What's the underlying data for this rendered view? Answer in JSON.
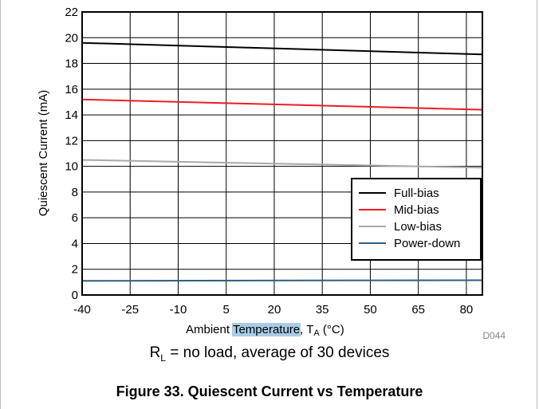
{
  "chart_data": {
    "type": "line",
    "xlabel_pre": "Ambient ",
    "xlabel_highlight": "Temperature",
    "xlabel_post": ", T",
    "xlabel_sub": "A",
    "xlabel_unit": " (°C)",
    "ylabel": "Quiescent Current (mA)",
    "xlim": [
      -40,
      85
    ],
    "ylim": [
      0,
      22
    ],
    "xticks": [
      -40,
      -25,
      -10,
      5,
      20,
      35,
      50,
      65,
      80
    ],
    "yticks": [
      0,
      2,
      4,
      6,
      8,
      10,
      12,
      14,
      16,
      18,
      20,
      22
    ],
    "grid": true,
    "legend_position": "lower-right",
    "series": [
      {
        "name": "Full-bias",
        "color": "#000000",
        "x": [
          -40,
          85
        ],
        "y": [
          19.6,
          18.7
        ]
      },
      {
        "name": "Mid-bias",
        "color": "#ee1c25",
        "x": [
          -40,
          85
        ],
        "y": [
          15.2,
          14.4
        ]
      },
      {
        "name": "Low-bias",
        "color": "#a8a8a8",
        "x": [
          -40,
          85
        ],
        "y": [
          10.5,
          9.9
        ]
      },
      {
        "name": "Power-down",
        "color": "#2e5f80",
        "x": [
          -40,
          85
        ],
        "y": [
          1.1,
          1.15
        ]
      }
    ],
    "code_tag": "D044",
    "highlight_color": "#a9cce7"
  },
  "condition": {
    "prefix": "R",
    "sub": "L",
    "text": " = no load, average of 30 devices"
  },
  "caption": "Figure 33. Quiescent Current vs Temperature"
}
